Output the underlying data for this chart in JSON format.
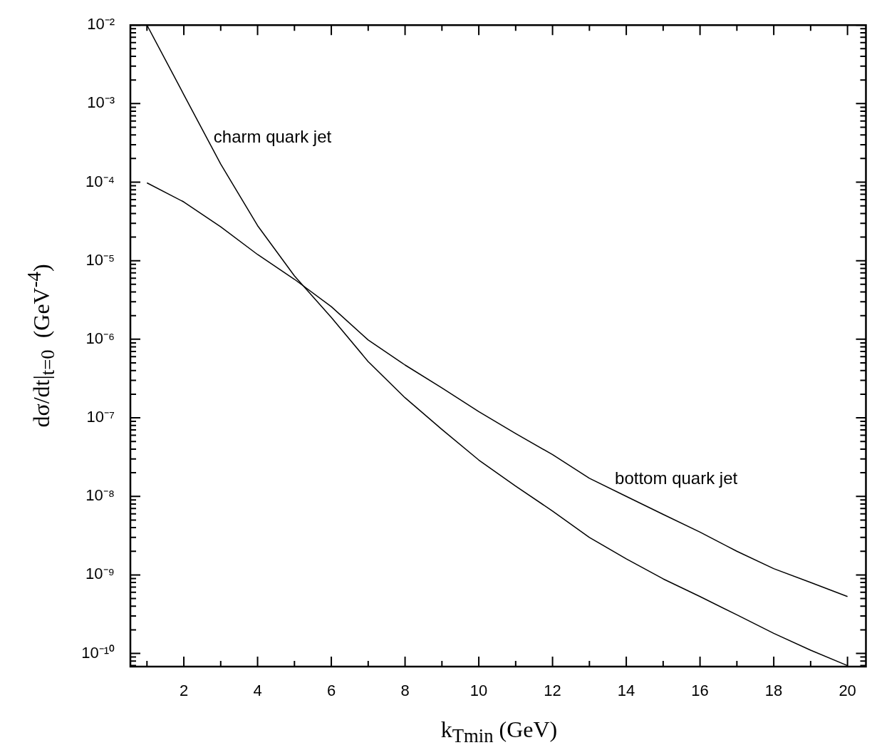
{
  "chart_data": {
    "type": "line",
    "xlabel": "k$_{Tmin}$ (GeV)",
    "ylabel": "dσ/dt|$_{t=0}$  (GeV$^{-4}$)",
    "log": "y",
    "legend": false,
    "grid": false,
    "marker": "none",
    "line_style": "solid",
    "xlim": [
      0.55,
      20.5
    ],
    "ylim": [
      6.8e-11,
      0.01
    ],
    "xticks": [
      {
        "value": 1,
        "label": null
      },
      2,
      {
        "value": 3,
        "label": null
      },
      4,
      {
        "value": 5,
        "label": null
      },
      6,
      {
        "value": 7,
        "label": null
      },
      8,
      {
        "value": 9,
        "label": null
      },
      10,
      {
        "value": 11,
        "label": null
      },
      12,
      {
        "value": 13,
        "label": null
      },
      14,
      {
        "value": 15,
        "label": null
      },
      16,
      {
        "value": 17,
        "label": null
      },
      18,
      {
        "value": 19,
        "label": null
      },
      20
    ],
    "yticks": [
      {
        "value": 0.01,
        "label": "10⁻²"
      },
      {
        "value": 0.009,
        "label": null
      },
      {
        "value": 0.008,
        "label": null
      },
      {
        "value": 0.007,
        "label": null
      },
      {
        "value": 0.006,
        "label": null
      },
      {
        "value": 0.005,
        "label": null
      },
      {
        "value": 0.004,
        "label": null
      },
      {
        "value": 0.003,
        "label": null
      },
      {
        "value": 0.002,
        "label": null
      },
      {
        "value": 0.001,
        "label": "10⁻³"
      },
      {
        "value": 0.0009,
        "label": null
      },
      {
        "value": 0.0008,
        "label": null
      },
      {
        "value": 0.0007,
        "label": null
      },
      {
        "value": 0.0006,
        "label": null
      },
      {
        "value": 0.0005,
        "label": null
      },
      {
        "value": 0.0004,
        "label": null
      },
      {
        "value": 0.0003,
        "label": null
      },
      {
        "value": 0.0002,
        "label": null
      },
      {
        "value": 0.0001,
        "label": "10⁻⁴"
      },
      {
        "value": 9e-05,
        "label": null
      },
      {
        "value": 8e-05,
        "label": null
      },
      {
        "value": 7e-05,
        "label": null
      },
      {
        "value": 6e-05,
        "label": null
      },
      {
        "value": 5e-05,
        "label": null
      },
      {
        "value": 4e-05,
        "label": null
      },
      {
        "value": 3e-05,
        "label": null
      },
      {
        "value": 2e-05,
        "label": null
      },
      {
        "value": 1e-05,
        "label": "10⁻⁵"
      },
      {
        "value": 9e-06,
        "label": null
      },
      {
        "value": 8e-06,
        "label": null
      },
      {
        "value": 7e-06,
        "label": null
      },
      {
        "value": 6e-06,
        "label": null
      },
      {
        "value": 5e-06,
        "label": null
      },
      {
        "value": 4e-06,
        "label": null
      },
      {
        "value": 3e-06,
        "label": null
      },
      {
        "value": 2e-06,
        "label": null
      },
      {
        "value": 1e-06,
        "label": "10⁻⁶"
      },
      {
        "value": 9e-07,
        "label": null
      },
      {
        "value": 8e-07,
        "label": null
      },
      {
        "value": 7e-07,
        "label": null
      },
      {
        "value": 6e-07,
        "label": null
      },
      {
        "value": 5e-07,
        "label": null
      },
      {
        "value": 4e-07,
        "label": null
      },
      {
        "value": 3e-07,
        "label": null
      },
      {
        "value": 2e-07,
        "label": null
      },
      {
        "value": 1e-07,
        "label": "10⁻⁷"
      },
      {
        "value": 9e-08,
        "label": null
      },
      {
        "value": 8e-08,
        "label": null
      },
      {
        "value": 7e-08,
        "label": null
      },
      {
        "value": 6e-08,
        "label": null
      },
      {
        "value": 5e-08,
        "label": null
      },
      {
        "value": 4e-08,
        "label": null
      },
      {
        "value": 3e-08,
        "label": null
      },
      {
        "value": 2e-08,
        "label": null
      },
      {
        "value": 1e-08,
        "label": "10⁻⁸"
      },
      {
        "value": 9e-09,
        "label": null
      },
      {
        "value": 8e-09,
        "label": null
      },
      {
        "value": 7e-09,
        "label": null
      },
      {
        "value": 6e-09,
        "label": null
      },
      {
        "value": 5e-09,
        "label": null
      },
      {
        "value": 4e-09,
        "label": null
      },
      {
        "value": 3e-09,
        "label": null
      },
      {
        "value": 2e-09,
        "label": null
      },
      {
        "value": 1e-09,
        "label": "10⁻⁹"
      },
      {
        "value": 9e-10,
        "label": null
      },
      {
        "value": 8e-10,
        "label": null
      },
      {
        "value": 7e-10,
        "label": null
      },
      {
        "value": 6e-10,
        "label": null
      },
      {
        "value": 5e-10,
        "label": null
      },
      {
        "value": 4e-10,
        "label": null
      },
      {
        "value": 3e-10,
        "label": null
      },
      {
        "value": 2e-10,
        "label": null
      },
      {
        "value": 1e-10,
        "label": "10⁻¹⁰"
      },
      {
        "value": 9e-11,
        "label": null
      },
      {
        "value": 8e-11,
        "label": null
      },
      {
        "value": 7e-11,
        "label": null
      }
    ],
    "series": [
      {
        "name": "charm quark jet",
        "color": "#000000",
        "x": [
          1,
          2,
          3,
          4,
          5,
          6,
          7,
          8,
          9,
          10,
          11,
          12,
          13,
          14,
          15,
          16,
          17,
          18,
          19,
          20
        ],
        "values": [
          0.01,
          0.0013,
          0.00017,
          2.8e-05,
          6.4e-06,
          1.9e-06,
          5.2e-07,
          1.8e-07,
          7.1e-08,
          2.9e-08,
          1.35e-08,
          6.5e-09,
          3e-09,
          1.6e-09,
          8.9e-10,
          5.3e-10,
          3.1e-10,
          1.8e-10,
          1.1e-10,
          7e-11
        ]
      },
      {
        "name": "bottom quark jet",
        "color": "#000000",
        "x": [
          1,
          2,
          3,
          4,
          5,
          6,
          7,
          8,
          9,
          10,
          11,
          12,
          13,
          14,
          15,
          16,
          17,
          18,
          19,
          20
        ],
        "values": [
          9.8e-05,
          5.6e-05,
          2.7e-05,
          1.2e-05,
          5.8e-06,
          2.6e-06,
          9.8e-07,
          4.7e-07,
          2.4e-07,
          1.2e-07,
          6.3e-08,
          3.4e-08,
          1.7e-08,
          1e-08,
          5.9e-09,
          3.5e-09,
          2e-09,
          1.2e-09,
          8e-10,
          5.3e-10
        ]
      }
    ]
  }
}
